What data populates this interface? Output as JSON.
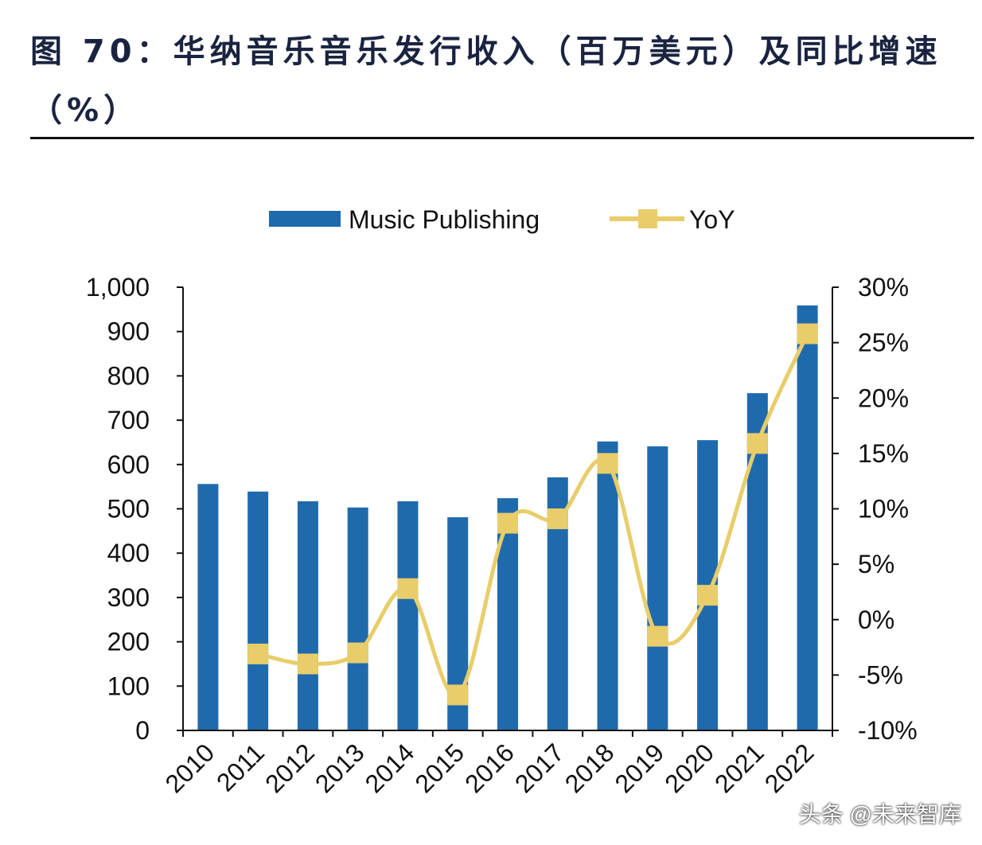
{
  "title": "图 70：华纳音乐音乐发行收入（百万美元）及同比增速（%）",
  "watermark": "头条 @未来智库",
  "chart_data": {
    "type": "bar",
    "categories": [
      "2010",
      "2011",
      "2012",
      "2013",
      "2014",
      "2015",
      "2016",
      "2017",
      "2018",
      "2019",
      "2020",
      "2021",
      "2022"
    ],
    "series": [
      {
        "name": "Music Publishing",
        "type": "bar",
        "axis": "left",
        "color": "#1f6aad",
        "values": [
          556,
          539,
          517,
          503,
          517,
          481,
          524,
          571,
          652,
          641,
          655,
          761,
          959
        ]
      },
      {
        "name": "YoY",
        "type": "line",
        "axis": "right",
        "color": "#e8cd6a",
        "values": [
          null,
          -3.1,
          -4.0,
          -3.0,
          2.8,
          -6.8,
          8.7,
          9.1,
          14.1,
          -1.5,
          2.2,
          15.9,
          25.8
        ]
      }
    ],
    "left_axis": {
      "ylim": [
        0,
        1000
      ],
      "ticks": [
        "0",
        "100",
        "200",
        "300",
        "400",
        "500",
        "600",
        "700",
        "800",
        "900",
        "1,000"
      ]
    },
    "right_axis": {
      "ylim": [
        -10,
        30
      ],
      "ticks": [
        "-10%",
        "-5%",
        "0%",
        "5%",
        "10%",
        "15%",
        "20%",
        "25%",
        "30%"
      ]
    },
    "grid": false,
    "legend": "top-center"
  }
}
